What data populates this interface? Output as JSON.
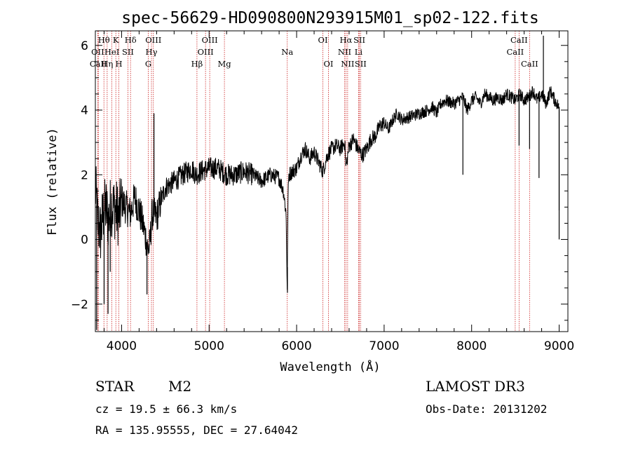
{
  "chart_data": {
    "type": "line",
    "title": "spec-56629-HD090800N293915M01_sp02-122.fits",
    "xlabel": "Wavelength (Å)",
    "ylabel": "Flux (relative)",
    "xlim": [
      3700,
      9100
    ],
    "ylim": [
      -2.85,
      6.45
    ],
    "xticks": [
      4000,
      5000,
      6000,
      7000,
      8000,
      9000
    ],
    "yticks": [
      -2,
      0,
      2,
      4,
      6
    ],
    "ytick_labels": [
      "−2",
      "0",
      "2",
      "4",
      "6"
    ],
    "series": [
      {
        "name": "flux",
        "x": [
          3700,
          3730,
          3760,
          3790,
          3820,
          3850,
          3880,
          3910,
          3940,
          3970,
          4000,
          4050,
          4100,
          4150,
          4200,
          4250,
          4280,
          4300,
          4320,
          4350,
          4400,
          4450,
          4500,
          4600,
          4700,
          4800,
          4850,
          4900,
          5000,
          5100,
          5200,
          5300,
          5400,
          5500,
          5600,
          5700,
          5800,
          5850,
          5880,
          5893,
          5900,
          5910,
          5950,
          6000,
          6050,
          6100,
          6150,
          6200,
          6250,
          6300,
          6350,
          6400,
          6450,
          6500,
          6550,
          6563,
          6600,
          6650,
          6700,
          6750,
          6800,
          6850,
          6900,
          6950,
          7000,
          7050,
          7100,
          7150,
          7200,
          7300,
          7400,
          7500,
          7550,
          7600,
          7650,
          7700,
          7800,
          7900,
          7950,
          8000,
          8050,
          8100,
          8150,
          8200,
          8250,
          8300,
          8350,
          8400,
          8450,
          8500,
          8550,
          8600,
          8650,
          8700,
          8750,
          8800,
          8850,
          8900,
          8950,
          9000,
          9010
        ],
        "y": [
          1.6,
          0.5,
          0.2,
          0.8,
          1.0,
          0.6,
          1.1,
          1.0,
          0.9,
          0.7,
          1.2,
          1.0,
          0.8,
          1.3,
          0.9,
          0.4,
          0.0,
          -0.3,
          -0.2,
          0.8,
          0.7,
          1.2,
          1.6,
          1.8,
          2.0,
          2.2,
          2.0,
          2.1,
          2.2,
          2.2,
          2.0,
          2.0,
          2.1,
          2.0,
          1.8,
          2.0,
          1.9,
          1.5,
          0.8,
          -1.6,
          1.0,
          2.0,
          2.1,
          2.2,
          2.6,
          2.8,
          2.5,
          2.7,
          2.4,
          2.1,
          2.6,
          2.8,
          2.9,
          2.8,
          3.0,
          2.2,
          2.9,
          3.1,
          2.8,
          2.6,
          2.8,
          3.1,
          3.2,
          3.5,
          3.6,
          3.4,
          3.7,
          3.9,
          3.7,
          3.8,
          3.9,
          4.0,
          4.1,
          3.9,
          4.2,
          4.3,
          4.2,
          4.4,
          4.0,
          4.3,
          4.4,
          4.2,
          4.5,
          4.4,
          4.3,
          4.4,
          4.3,
          4.5,
          4.4,
          4.3,
          4.5,
          4.3,
          4.4,
          4.6,
          4.3,
          4.5,
          4.2,
          4.6,
          4.3,
          4.1,
          0.9
        ]
      }
    ],
    "spikes": [
      {
        "x": 3715,
        "y": -2.8
      },
      {
        "x": 3800,
        "y": -2.0
      },
      {
        "x": 3845,
        "y": -2.3
      },
      {
        "x": 3870,
        "y": -1.0
      },
      {
        "x": 4370,
        "y": 3.9
      },
      {
        "x": 4290,
        "y": -1.7
      },
      {
        "x": 5895,
        "y": -1.65
      },
      {
        "x": 7900,
        "y": 2.0
      },
      {
        "x": 8542,
        "y": 2.9
      },
      {
        "x": 8662,
        "y": 2.8
      },
      {
        "x": 8770,
        "y": 1.9
      },
      {
        "x": 8820,
        "y": 6.3
      },
      {
        "x": 9000,
        "y": 0.0
      }
    ],
    "lines": [
      {
        "label": "Hθ",
        "x": 3798,
        "row": 1
      },
      {
        "label": "OII",
        "x": 3727,
        "row": 2
      },
      {
        "label": "CaII",
        "x": 3734,
        "row": 3
      },
      {
        "label": "Hη",
        "x": 3835,
        "row": 3
      },
      {
        "label": "HeI",
        "x": 3889,
        "row": 2
      },
      {
        "label": "K",
        "x": 3934,
        "row": 1
      },
      {
        "label": "H",
        "x": 3969,
        "row": 3
      },
      {
        "label": "SII",
        "x": 4072,
        "row": 2
      },
      {
        "label": "Hδ",
        "x": 4102,
        "row": 1
      },
      {
        "label": "G",
        "x": 4305,
        "row": 3
      },
      {
        "label": "Hγ",
        "x": 4341,
        "row": 2
      },
      {
        "label": "OIII",
        "x": 4363,
        "row": 1
      },
      {
        "label": "Hβ",
        "x": 4861,
        "row": 3
      },
      {
        "label": "OIII",
        "x": 4959,
        "row": 2
      },
      {
        "label": "OIII",
        "x": 5007,
        "row": 1
      },
      {
        "label": "Mg",
        "x": 5175,
        "row": 3
      },
      {
        "label": "Na",
        "x": 5893,
        "row": 2
      },
      {
        "label": "OI",
        "x": 6300,
        "row": 1
      },
      {
        "label": "OI",
        "x": 6364,
        "row": 3
      },
      {
        "label": "NII",
        "x": 6548,
        "row": 2
      },
      {
        "label": "Hα",
        "x": 6563,
        "row": 1
      },
      {
        "label": "NII",
        "x": 6583,
        "row": 3
      },
      {
        "label": "SII",
        "x": 6717,
        "row": 1
      },
      {
        "label": "Li",
        "x": 6708,
        "row": 2
      },
      {
        "label": "SII",
        "x": 6731,
        "row": 3
      },
      {
        "label": "CaII",
        "x": 8498,
        "row": 2
      },
      {
        "label": "CaII",
        "x": 8542,
        "row": 1
      },
      {
        "label": "CaII",
        "x": 8662,
        "row": 3
      }
    ]
  },
  "info": {
    "object_type": "STAR",
    "subclass": "M2",
    "cz": "cz = 19.5 ± 66.3 km/s",
    "coords": "RA = 135.95555, DEC =  27.64042",
    "survey": "LAMOST DR3",
    "obs_date": "Obs-Date: 20131202"
  },
  "colors": {
    "line_marker": "#cc2222",
    "spectrum": "#000000",
    "axes": "#000000"
  }
}
